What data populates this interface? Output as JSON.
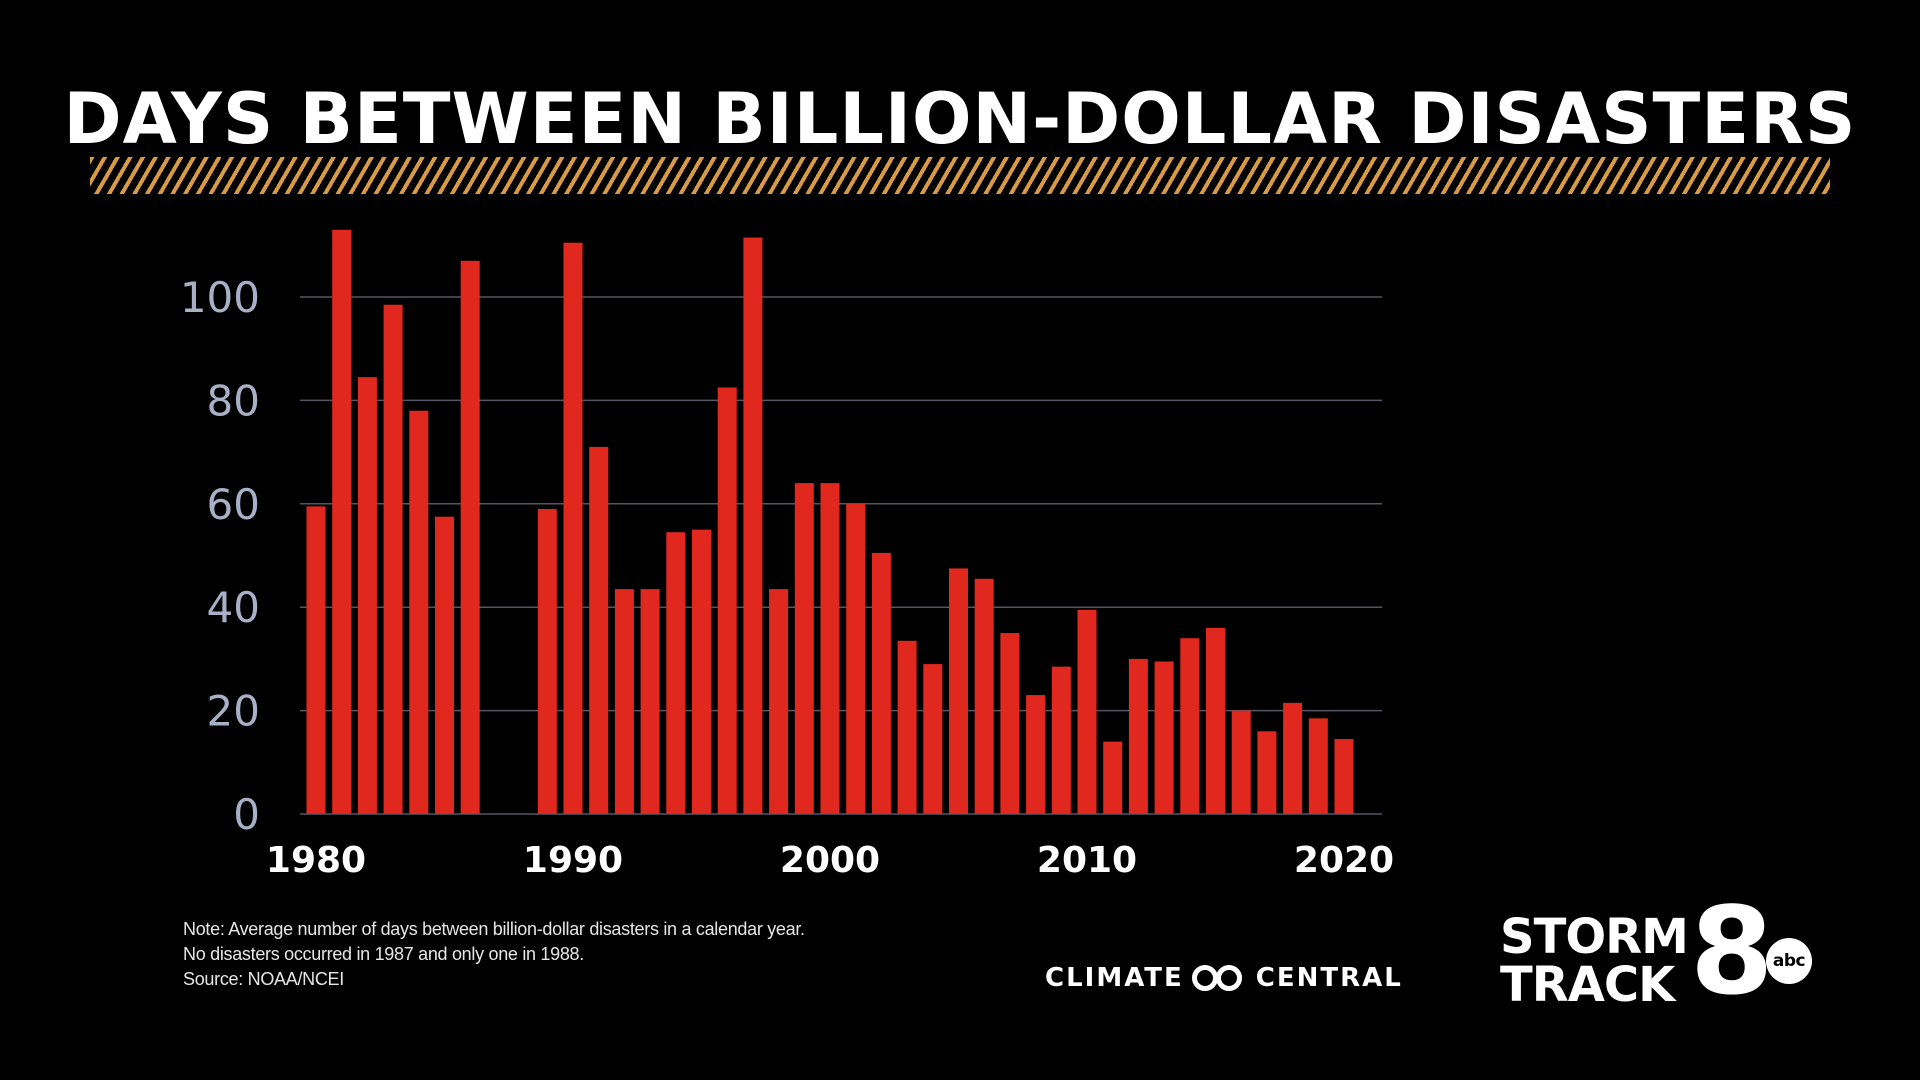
{
  "title": "DAYS BETWEEN BILLION-DOLLAR DISASTERS",
  "notes": [
    "Note: Average number of days between billion-dollar disasters in a calendar year.",
    "No disasters occurred in 1987 and only one in 1988.",
    "Source:  NOAA/NCEI"
  ],
  "brand": {
    "climate_left": "CLIMATE",
    "climate_right": "CENTRAL",
    "station_line1": "STORM",
    "station_line2": "TRACK",
    "station_number": "8",
    "network": "abc"
  },
  "colors": {
    "bar": "#e0281f",
    "grid": "#555566",
    "ytick": "#a8b0c8",
    "stripe": "#d99a45"
  },
  "chart_data": {
    "type": "bar",
    "title": "DAYS BETWEEN BILLION-DOLLAR DISASTERS",
    "xlabel": "",
    "ylabel": "",
    "ylim": [
      0,
      112
    ],
    "yticks": [
      0,
      20,
      40,
      60,
      80,
      100
    ],
    "xticks": [
      1980,
      1990,
      2000,
      2010,
      2020
    ],
    "grid": true,
    "x": [
      1980,
      1981,
      1982,
      1983,
      1984,
      1985,
      1986,
      1987,
      1988,
      1989,
      1990,
      1991,
      1992,
      1993,
      1994,
      1995,
      1996,
      1997,
      1998,
      1999,
      2000,
      2001,
      2002,
      2003,
      2004,
      2005,
      2006,
      2007,
      2008,
      2009,
      2010,
      2011,
      2012,
      2013,
      2014,
      2015,
      2016,
      2017,
      2018,
      2019,
      2020
    ],
    "values": [
      59.5,
      113,
      84.5,
      98.5,
      78,
      57.5,
      107,
      0,
      0,
      59,
      110.5,
      71,
      43.5,
      43.5,
      54.5,
      55,
      82.5,
      111.5,
      43.5,
      64,
      64,
      60,
      50.5,
      33.5,
      29,
      47.5,
      45.5,
      35,
      23,
      28.5,
      39.5,
      14,
      30,
      29.5,
      34,
      36,
      20,
      16,
      21.5,
      18.5,
      14.5
    ]
  }
}
